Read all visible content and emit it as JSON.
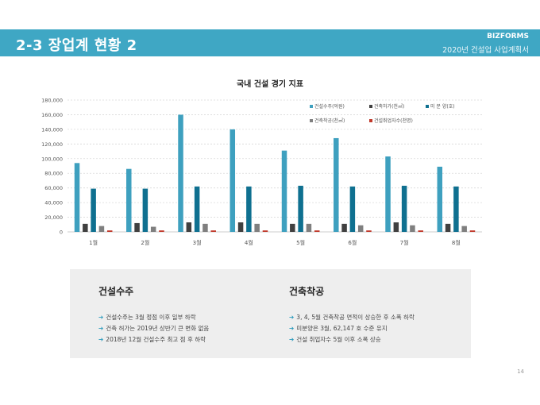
{
  "header": {
    "title": "2-3 장업계 현황 2",
    "brand": "BIZFORMS",
    "subtitle": "2020년 건설업 사업계획서"
  },
  "colors": {
    "accent": "#3fa7c4",
    "series": [
      "#3ea0bf",
      "#404040",
      "#0f7090",
      "#7f7f7f",
      "#c0392b"
    ]
  },
  "chart_data": {
    "type": "bar",
    "title": "국내 건설 경기 지표",
    "categories": [
      "1월",
      "2월",
      "3월",
      "4월",
      "5월",
      "6월",
      "7월",
      "8월"
    ],
    "ylim": [
      0,
      180000
    ],
    "yticks": [
      "0",
      "20,000",
      "40,000",
      "60,000",
      "80,000",
      "100,000",
      "120,000",
      "140,000",
      "160,000",
      "180,000"
    ],
    "grid": true,
    "legend_position": "top-right",
    "series": [
      {
        "name": "건설수주(억원)",
        "values": [
          94000,
          86000,
          160000,
          140000,
          111000,
          128000,
          103000,
          89000
        ]
      },
      {
        "name": "건축허가(천㎡)",
        "values": [
          11000,
          12000,
          13000,
          13000,
          11000,
          11000,
          13000,
          11000
        ]
      },
      {
        "name": "미 분 양(호)",
        "values": [
          59000,
          59000,
          62000,
          62000,
          63000,
          62000,
          63000,
          62000
        ]
      },
      {
        "name": "건축착공(천㎡)",
        "values": [
          8000,
          7000,
          11000,
          11000,
          11000,
          9000,
          9000,
          8000
        ]
      },
      {
        "name": "건설취업자수(천명)",
        "values": [
          2000,
          2000,
          2000,
          2000,
          2000,
          2000,
          2000,
          2000
        ]
      }
    ]
  },
  "info": {
    "left": {
      "title": "건설수주",
      "items": [
        "건설수주는 3월 정점 이후 일부 하락",
        "건축 허가는 2019년 상반기 큰 변화 없음",
        "2018년 12월 건설수주 최고 점 후 하락"
      ]
    },
    "right": {
      "title": "건축착공",
      "items": [
        "3, 4, 5월 건축착공 면적이 상승한 후 소폭 하락",
        "미분양은 3월, 62,147 호 수준 유지",
        "건설 취업자수 5월 이후 소폭 상승"
      ]
    },
    "arrow": "➔"
  },
  "page_number": "14"
}
